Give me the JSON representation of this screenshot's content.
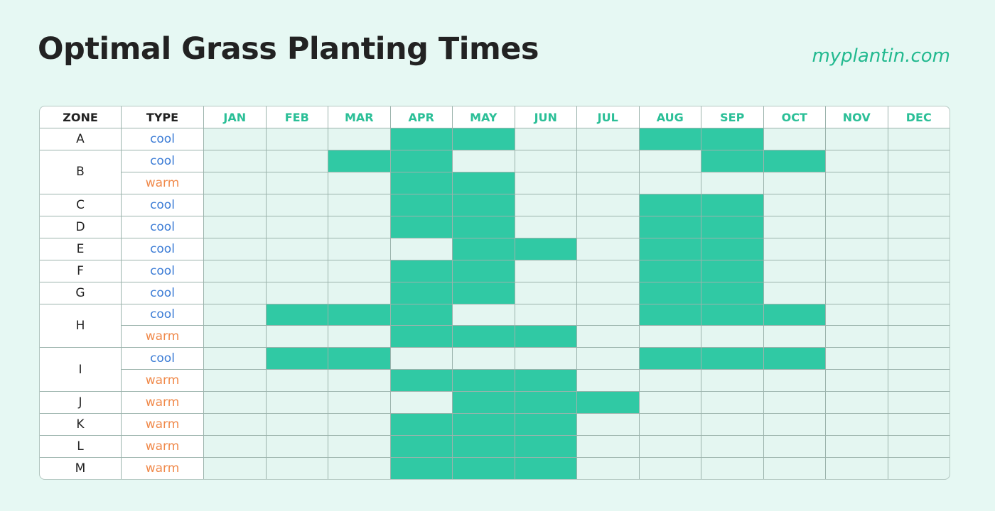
{
  "header": {
    "title": "Optimal Grass Planting Times",
    "site": "myplantin.com"
  },
  "table": {
    "columns": [
      "ZONE",
      "TYPE",
      "JAN",
      "FEB",
      "MAR",
      "APR",
      "MAY",
      "JUN",
      "JUL",
      "AUG",
      "SEP",
      "OCT",
      "NOV",
      "DEC"
    ],
    "zones": [
      {
        "zone": "A",
        "types": [
          {
            "type": "cool",
            "plant": [
              false,
              false,
              false,
              true,
              true,
              false,
              false,
              true,
              true,
              false,
              false,
              false
            ]
          }
        ]
      },
      {
        "zone": "B",
        "types": [
          {
            "type": "cool",
            "plant": [
              false,
              false,
              true,
              true,
              false,
              false,
              false,
              false,
              true,
              true,
              false,
              false
            ]
          },
          {
            "type": "warm",
            "plant": [
              false,
              false,
              false,
              true,
              true,
              false,
              false,
              false,
              false,
              false,
              false,
              false
            ]
          }
        ]
      },
      {
        "zone": "C",
        "types": [
          {
            "type": "cool",
            "plant": [
              false,
              false,
              false,
              true,
              true,
              false,
              false,
              true,
              true,
              false,
              false,
              false
            ]
          }
        ]
      },
      {
        "zone": "D",
        "types": [
          {
            "type": "cool",
            "plant": [
              false,
              false,
              false,
              true,
              true,
              false,
              false,
              true,
              true,
              false,
              false,
              false
            ]
          }
        ]
      },
      {
        "zone": "E",
        "types": [
          {
            "type": "cool",
            "plant": [
              false,
              false,
              false,
              false,
              true,
              true,
              false,
              true,
              true,
              false,
              false,
              false
            ]
          }
        ]
      },
      {
        "zone": "F",
        "types": [
          {
            "type": "cool",
            "plant": [
              false,
              false,
              false,
              true,
              true,
              false,
              false,
              true,
              true,
              false,
              false,
              false
            ]
          }
        ]
      },
      {
        "zone": "G",
        "types": [
          {
            "type": "cool",
            "plant": [
              false,
              false,
              false,
              true,
              true,
              false,
              false,
              true,
              true,
              false,
              false,
              false
            ]
          }
        ]
      },
      {
        "zone": "H",
        "types": [
          {
            "type": "cool",
            "plant": [
              false,
              true,
              true,
              true,
              false,
              false,
              false,
              true,
              true,
              true,
              false,
              false
            ]
          },
          {
            "type": "warm",
            "plant": [
              false,
              false,
              false,
              true,
              true,
              true,
              false,
              false,
              false,
              false,
              false,
              false
            ]
          }
        ]
      },
      {
        "zone": "I",
        "types": [
          {
            "type": "cool",
            "plant": [
              false,
              true,
              true,
              false,
              false,
              false,
              false,
              true,
              true,
              true,
              false,
              false
            ]
          },
          {
            "type": "warm",
            "plant": [
              false,
              false,
              false,
              true,
              true,
              true,
              false,
              false,
              false,
              false,
              false,
              false
            ]
          }
        ]
      },
      {
        "zone": "J",
        "types": [
          {
            "type": "warm",
            "plant": [
              false,
              false,
              false,
              false,
              true,
              true,
              true,
              false,
              false,
              false,
              false,
              false
            ]
          }
        ]
      },
      {
        "zone": "K",
        "types": [
          {
            "type": "warm",
            "plant": [
              false,
              false,
              false,
              true,
              true,
              true,
              false,
              false,
              false,
              false,
              false,
              false
            ]
          }
        ]
      },
      {
        "zone": "L",
        "types": [
          {
            "type": "warm",
            "plant": [
              false,
              false,
              false,
              true,
              true,
              true,
              false,
              false,
              false,
              false,
              false,
              false
            ]
          }
        ]
      },
      {
        "zone": "M",
        "types": [
          {
            "type": "warm",
            "plant": [
              false,
              false,
              false,
              true,
              true,
              true,
              false,
              false,
              false,
              false,
              false,
              false
            ]
          }
        ]
      }
    ]
  }
}
